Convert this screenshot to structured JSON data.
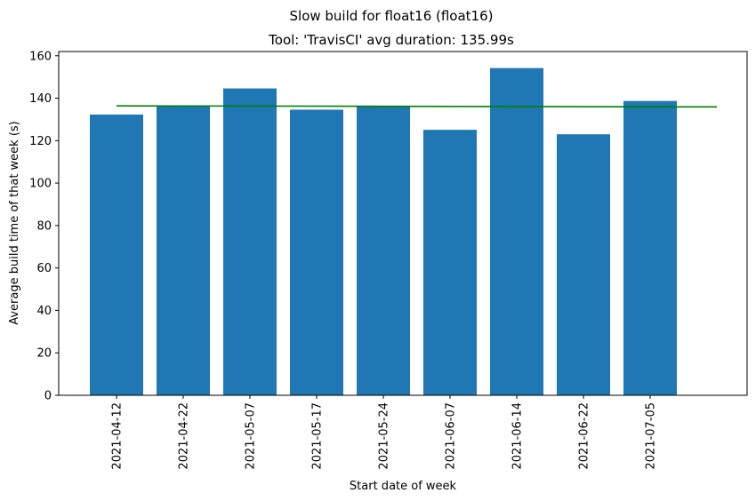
{
  "chart_data": {
    "type": "bar",
    "suptitle": "Slow build for float16 (float16)",
    "title": "Tool: 'TravisCI' avg duration: 135.99s",
    "xlabel": "Start date of week",
    "ylabel": "Average build time of that week (s)",
    "categories": [
      "2021-04-12",
      "2021-04-22",
      "2021-05-07",
      "2021-05-17",
      "2021-05-24",
      "2021-06-07",
      "2021-06-14",
      "2021-06-22",
      "2021-07-05"
    ],
    "values": [
      132.3,
      136.5,
      144.6,
      134.6,
      136.4,
      125.1,
      154.2,
      123.0,
      138.7
    ],
    "ylim": [
      0,
      162
    ],
    "yticks": [
      0,
      20,
      40,
      60,
      80,
      100,
      120,
      140,
      160
    ],
    "trend_line": {
      "start": 136.4,
      "end": 135.9
    },
    "colors": {
      "bar": "#1f77b4",
      "trend": "#008000"
    },
    "grid": false
  }
}
